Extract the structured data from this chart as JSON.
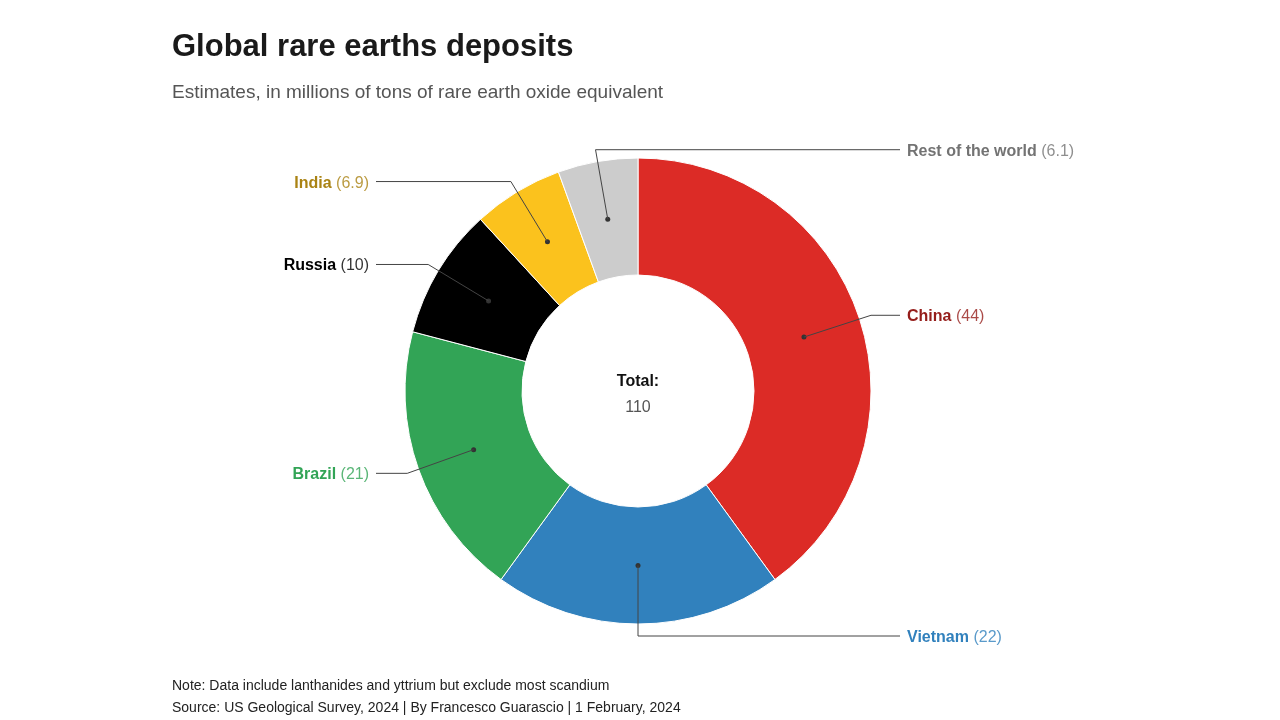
{
  "chart_data": {
    "type": "donut",
    "title": "Global rare earths deposits",
    "subtitle": "Estimates, in millions of tons of rare earth oxide equivalent",
    "categories": [
      "China",
      "Vietnam",
      "Brazil",
      "Russia",
      "India",
      "Rest of the world"
    ],
    "values": [
      44,
      22,
      21,
      10,
      6.9,
      6.1
    ],
    "colors": [
      "#dc2b26",
      "#3181bd",
      "#32a456",
      "#000000",
      "#fbc21d",
      "#cccccc"
    ],
    "value_labels": [
      "(44)",
      "(22)",
      "(21)",
      "(10)",
      "(6.9)",
      "(6.1)"
    ],
    "annotations": [
      "Total:",
      "110",
      "Note: Data include lanthanides and yttrium but exclude most scandium",
      "Source: US Geological Survey, 2024 | By Francesco Guarascio | 1 February, 2024"
    ]
  }
}
